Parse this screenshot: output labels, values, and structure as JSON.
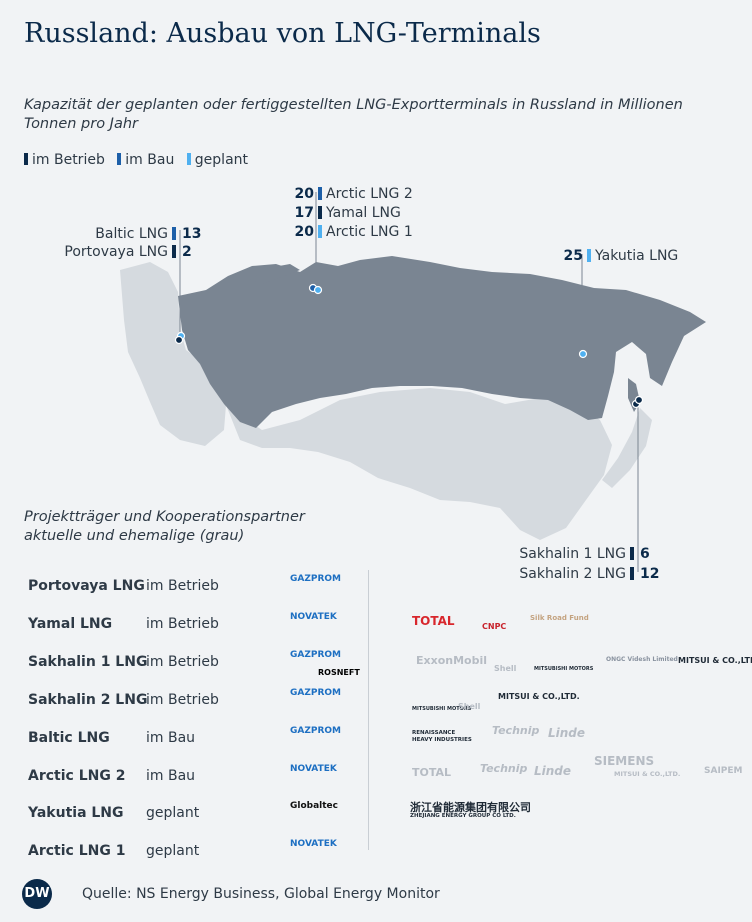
{
  "title": "Russland: Ausbau von LNG-Terminals",
  "subtitle": "Kapazität der geplanten oder fertiggestellten LNG-Exportterminals in Russland in Millionen Tonnen pro Jahr",
  "legend": {
    "items": [
      {
        "label": "im Betrieb",
        "color": "#0b2a4a"
      },
      {
        "label": "im Bau",
        "color": "#1d5fa8"
      },
      {
        "label": "geplant",
        "color": "#4fb0f0"
      }
    ]
  },
  "colors": {
    "russia": "#7a8592",
    "land": "#d5dadf",
    "background": "#f1f3f5"
  },
  "chart_data": {
    "type": "map",
    "unit": "Millionen Tonnen pro Jahr",
    "terminals": [
      {
        "name": "Arctic LNG 2",
        "value": 20,
        "status": "im Bau"
      },
      {
        "name": "Yamal LNG",
        "value": 17,
        "status": "im Betrieb"
      },
      {
        "name": "Arctic LNG 1",
        "value": 20,
        "status": "geplant"
      },
      {
        "name": "Baltic LNG",
        "value": 13,
        "status": "im Bau"
      },
      {
        "name": "Portovaya LNG",
        "value": 2,
        "status": "im Betrieb"
      },
      {
        "name": "Yakutia LNG",
        "value": 25,
        "status": "geplant"
      },
      {
        "name": "Sakhalin 1 LNG",
        "value": 6,
        "status": "im Betrieb"
      },
      {
        "name": "Sakhalin 2 LNG",
        "value": 12,
        "status": "im Betrieb"
      }
    ]
  },
  "partners": {
    "heading_line1": "Projektträger und Kooperationspartner",
    "heading_line2": "aktuelle und ehemalige (grau)",
    "rows": [
      {
        "project": "Portovaya LNG",
        "status": "im Betrieb",
        "main": [
          "GAZPROM"
        ],
        "others": []
      },
      {
        "project": "Yamal LNG",
        "status": "im Betrieb",
        "main": [
          "NOVATEK"
        ],
        "others": [
          "TOTAL",
          "CNPC",
          "Silk Road Fund"
        ]
      },
      {
        "project": "Sakhalin 1 LNG",
        "status": "im Betrieb",
        "main": [
          "GAZPROM",
          "ROSNEFT"
        ],
        "others": [
          "ExxonMobil",
          "Shell",
          "MITSUBISHI MOTORS",
          "ONGC Videsh Limited",
          "MITSUI & CO.,LTD."
        ]
      },
      {
        "project": "Sakhalin 2 LNG",
        "status": "im Betrieb",
        "main": [
          "GAZPROM"
        ],
        "others": [
          "MITSUBISHI MOTORS",
          "Shell",
          "MITSUI & CO.,LTD."
        ]
      },
      {
        "project": "Baltic LNG",
        "status": "im Bau",
        "main": [
          "GAZPROM"
        ],
        "others": [
          "RENAISSANCE HEAVY INDUSTRIES",
          "Technip",
          "Linde"
        ]
      },
      {
        "project": "Arctic LNG 2",
        "status": "im Bau",
        "main": [
          "NOVATEK"
        ],
        "others": [
          "TOTAL",
          "Technip",
          "Linde",
          "SIEMENS",
          "MITSUI & CO.,LTD.",
          "SAIPEM"
        ]
      },
      {
        "project": "Yakutia LNG",
        "status": "geplant",
        "main": [
          "Globaltec"
        ],
        "others": [
          "浙江省能源集团有限公司",
          "ZHEJIANG ENERGY GROUP CO LTD."
        ]
      },
      {
        "project": "Arctic LNG 1",
        "status": "geplant",
        "main": [
          "NOVATEK"
        ],
        "others": []
      }
    ]
  },
  "footer": {
    "logo": "DW",
    "source": "Quelle: NS Energy Business, Global Energy Monitor"
  }
}
